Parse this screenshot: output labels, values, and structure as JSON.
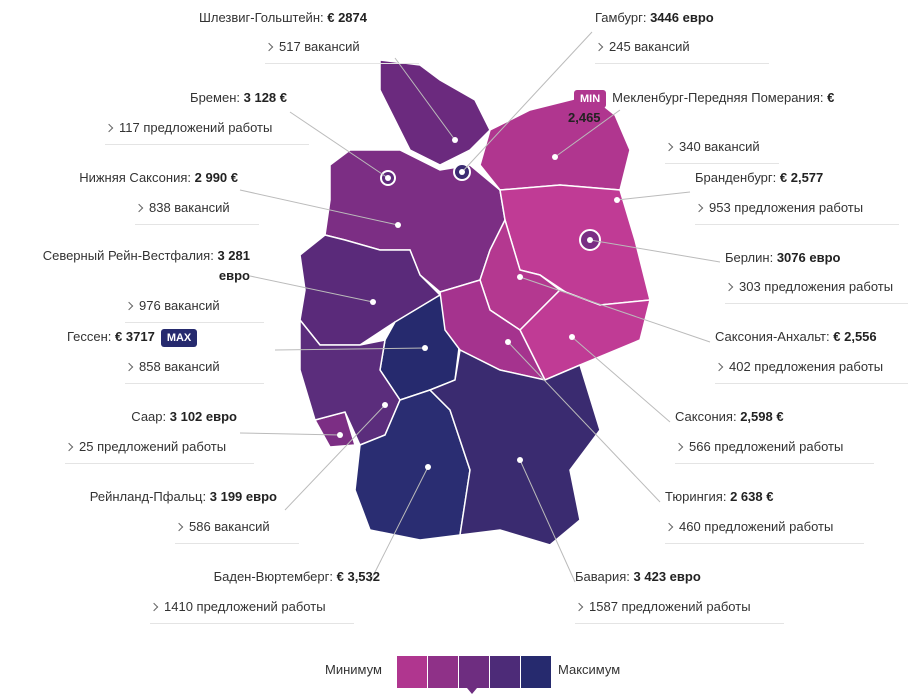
{
  "regions": [
    {
      "name": "Шлезвиг-Гольштейн:",
      "salary": "€ 2874",
      "vacancies": "517 вакансий",
      "color": "#6b2a7e"
    },
    {
      "name": "Бремен:",
      "salary": "3 128 €",
      "vacancies": "117 предложений работы",
      "color": "#5f2b7c"
    },
    {
      "name": "Нижняя Саксония:",
      "salary": "2 990 €",
      "vacancies": "838 вакансий",
      "color": "#7c2e84"
    },
    {
      "name": "Северный Рейн-Вестфалия:",
      "salary": "3 281 евро",
      "vacancies": "976 вакансий",
      "color": "#5a2a7a"
    },
    {
      "name": "Гессен:",
      "salary": "€ 3717",
      "vacancies": "858 вакансий",
      "color": "#262a6e",
      "badge": "MAX"
    },
    {
      "name": "Саар:",
      "salary": "3 102 евро",
      "vacancies": "25 предложений работы",
      "color": "#7c2e84"
    },
    {
      "name": "Рейнланд-Пфальц:",
      "salary": "3 199 евро",
      "vacancies": "586 вакансий",
      "color": "#5b2d7c"
    },
    {
      "name": "Баден-Вюртемберг:",
      "salary": "€ 3,532",
      "vacancies": "1410 предложений работы",
      "color": "#2a2d72"
    },
    {
      "name": "Гамбург:",
      "salary": "3446 евро",
      "vacancies": "245 вакансий",
      "color": "#3b2b72"
    },
    {
      "name": "Мекленбург-Передняя Померания:",
      "salary": "€ 2,465",
      "vacancies": "340 вакансий",
      "color": "#b0368f",
      "badge": "MIN"
    },
    {
      "name": "Бранденбург:",
      "salary": "€ 2,577",
      "vacancies": "953 предложения работы",
      "color": "#c03b95"
    },
    {
      "name": "Берлин:",
      "salary": "3076 евро",
      "vacancies": "303 предложения работы",
      "color": "#7a2e84"
    },
    {
      "name": "Саксония-Анхальт:",
      "salary": "€ 2,556",
      "vacancies": "402 предложения работы",
      "color": "#b43890"
    },
    {
      "name": "Саксония:",
      "salary": "2,598 €",
      "vacancies": "566 предложений работы",
      "color": "#c03b95"
    },
    {
      "name": "Тюрингия:",
      "salary": "2 638 €",
      "vacancies": "460 предложений работы",
      "color": "#a5338e"
    },
    {
      "name": "Бавария:",
      "salary": "3 423 евро",
      "vacancies": "1587 предложений работы",
      "color": "#3a2b70"
    }
  ],
  "legend": {
    "min_label": "Минимум",
    "max_label": "Максимум",
    "colors": [
      "#b0368f",
      "#8f3188",
      "#6e2d80",
      "#4d2b78",
      "#262a6e"
    ]
  }
}
